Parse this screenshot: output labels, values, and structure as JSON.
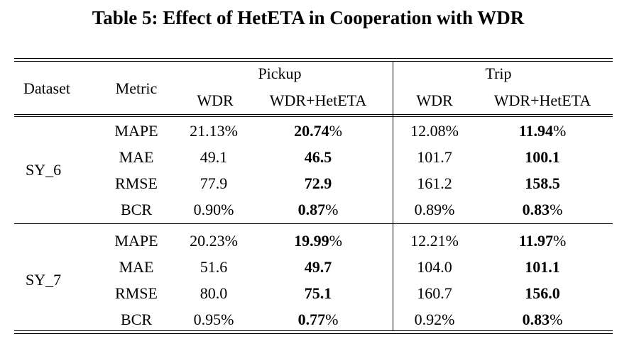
{
  "page": {
    "background": "#ffffff",
    "text_color": "#000000",
    "rule_color": "#000000"
  },
  "title": "Table 5: Effect of HetETA in Cooperation with WDR",
  "table": {
    "header": {
      "dataset": "Dataset",
      "metric": "Metric",
      "group_pickup": "Pickup",
      "group_trip": "Trip",
      "sub_wdr": "WDR",
      "sub_wdr_heteta": "WDR+HetETA"
    },
    "groups": [
      {
        "dataset": "SY_6",
        "rows": [
          {
            "metric": "MAPE",
            "pickup_wdr": "21.13%",
            "pickup_heteta": "20.74",
            "pickup_heteta_suffix": "%",
            "trip_wdr": "12.08%",
            "trip_heteta": "11.94",
            "trip_heteta_suffix": "%"
          },
          {
            "metric": "MAE",
            "pickup_wdr": "49.1",
            "pickup_heteta": "46.5",
            "pickup_heteta_suffix": "",
            "trip_wdr": "101.7",
            "trip_heteta": "100.1",
            "trip_heteta_suffix": ""
          },
          {
            "metric": "RMSE",
            "pickup_wdr": "77.9",
            "pickup_heteta": "72.9",
            "pickup_heteta_suffix": "",
            "trip_wdr": "161.2",
            "trip_heteta": "158.5",
            "trip_heteta_suffix": ""
          },
          {
            "metric": "BCR",
            "pickup_wdr": "0.90%",
            "pickup_heteta": "0.87",
            "pickup_heteta_suffix": "%",
            "trip_wdr": "0.89%",
            "trip_heteta": "0.83",
            "trip_heteta_suffix": "%"
          }
        ]
      },
      {
        "dataset": "SY_7",
        "rows": [
          {
            "metric": "MAPE",
            "pickup_wdr": "20.23%",
            "pickup_heteta": "19.99",
            "pickup_heteta_suffix": "%",
            "trip_wdr": "12.21%",
            "trip_heteta": "11.97",
            "trip_heteta_suffix": "%"
          },
          {
            "metric": "MAE",
            "pickup_wdr": "51.6",
            "pickup_heteta": "49.7",
            "pickup_heteta_suffix": "",
            "trip_wdr": "104.0",
            "trip_heteta": "101.1",
            "trip_heteta_suffix": ""
          },
          {
            "metric": "RMSE",
            "pickup_wdr": "80.0",
            "pickup_heteta": "75.1",
            "pickup_heteta_suffix": "",
            "trip_wdr": "160.7",
            "trip_heteta": "156.0",
            "trip_heteta_suffix": ""
          },
          {
            "metric": "BCR",
            "pickup_wdr": "0.95%",
            "pickup_heteta": "0.77",
            "pickup_heteta_suffix": "%",
            "trip_wdr": "0.92%",
            "trip_heteta": "0.83",
            "trip_heteta_suffix": "%"
          }
        ]
      }
    ]
  }
}
